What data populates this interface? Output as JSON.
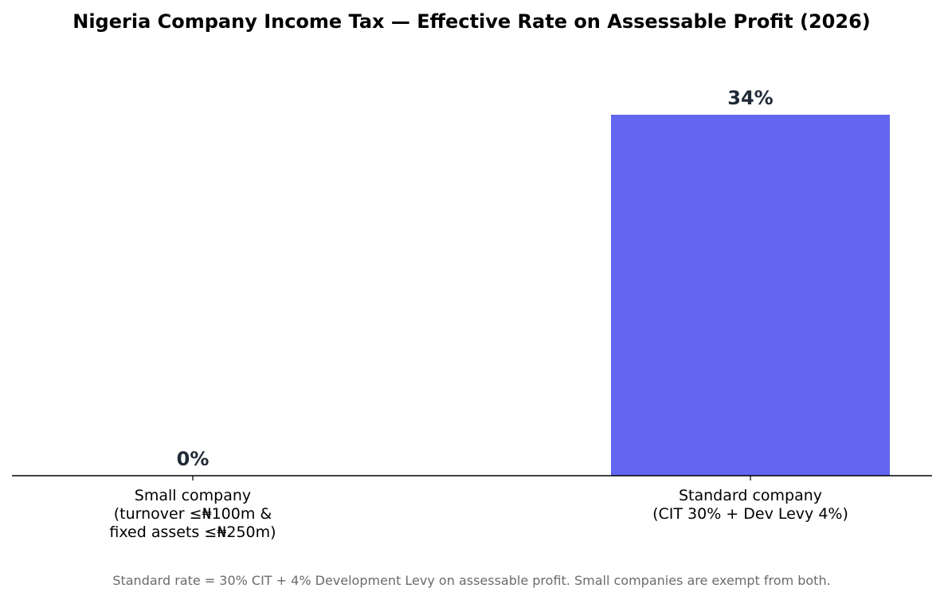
{
  "chart_data": {
    "type": "bar",
    "title": "Nigeria Company Income Tax — Effective Rate on Assessable Profit (2026)",
    "categories": [
      [
        "Small company",
        "(turnover ≤₦100m &",
        "fixed assets ≤₦250m)"
      ],
      [
        "Standard company",
        "(CIT 30% + Dev Levy 4%)"
      ]
    ],
    "values": [
      0,
      34
    ],
    "value_labels": [
      "0%",
      "34%"
    ],
    "ylim": [
      0,
      34
    ],
    "grid": false,
    "xlabel": "",
    "ylabel": "",
    "footnote": "Standard rate = 30% CIT + 4% Development Levy on assessable profit. Small companies are exempt from both."
  },
  "colors": {
    "bar": "#6366f1",
    "value_label": "#1f2937",
    "axis": "#000000",
    "footnote": "#6b6b6b"
  }
}
